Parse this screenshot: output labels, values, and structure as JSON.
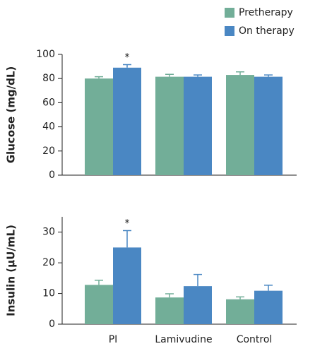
{
  "chart_data": [
    {
      "type": "bar",
      "y_label": "Glucose (mg/dL)",
      "categories": [
        null,
        null,
        null
      ],
      "series": [
        {
          "name": "Pretherapy",
          "color": "#72ae98",
          "values": [
            80,
            81.5,
            83
          ],
          "errors": [
            1.5,
            2,
            2.5
          ]
        },
        {
          "name": "On therapy",
          "color": "#4a87c3",
          "values": [
            89,
            81.5,
            81.5
          ],
          "errors": [
            2.5,
            1.5,
            1.5
          ],
          "marks": [
            "*",
            null,
            null
          ]
        }
      ],
      "ylim": [
        0,
        100
      ],
      "yticks": [
        0,
        20,
        40,
        60,
        80,
        100
      ]
    },
    {
      "type": "bar",
      "y_label": "Insulin (µU/mL)",
      "categories": [
        "PI",
        "Lamivudine",
        "Control"
      ],
      "series": [
        {
          "color": "#72ae98",
          "values": [
            12.8,
            8.7,
            8.1
          ],
          "errors": [
            1.5,
            1.2,
            0.8
          ]
        },
        {
          "color": "#4a87c3",
          "values": [
            25,
            12.4,
            10.9
          ],
          "errors": [
            5.5,
            3.8,
            1.8
          ],
          "marks": [
            "*",
            null,
            null
          ]
        }
      ],
      "ylim": [
        0,
        35
      ],
      "yticks": [
        0,
        10,
        20,
        30
      ]
    }
  ]
}
